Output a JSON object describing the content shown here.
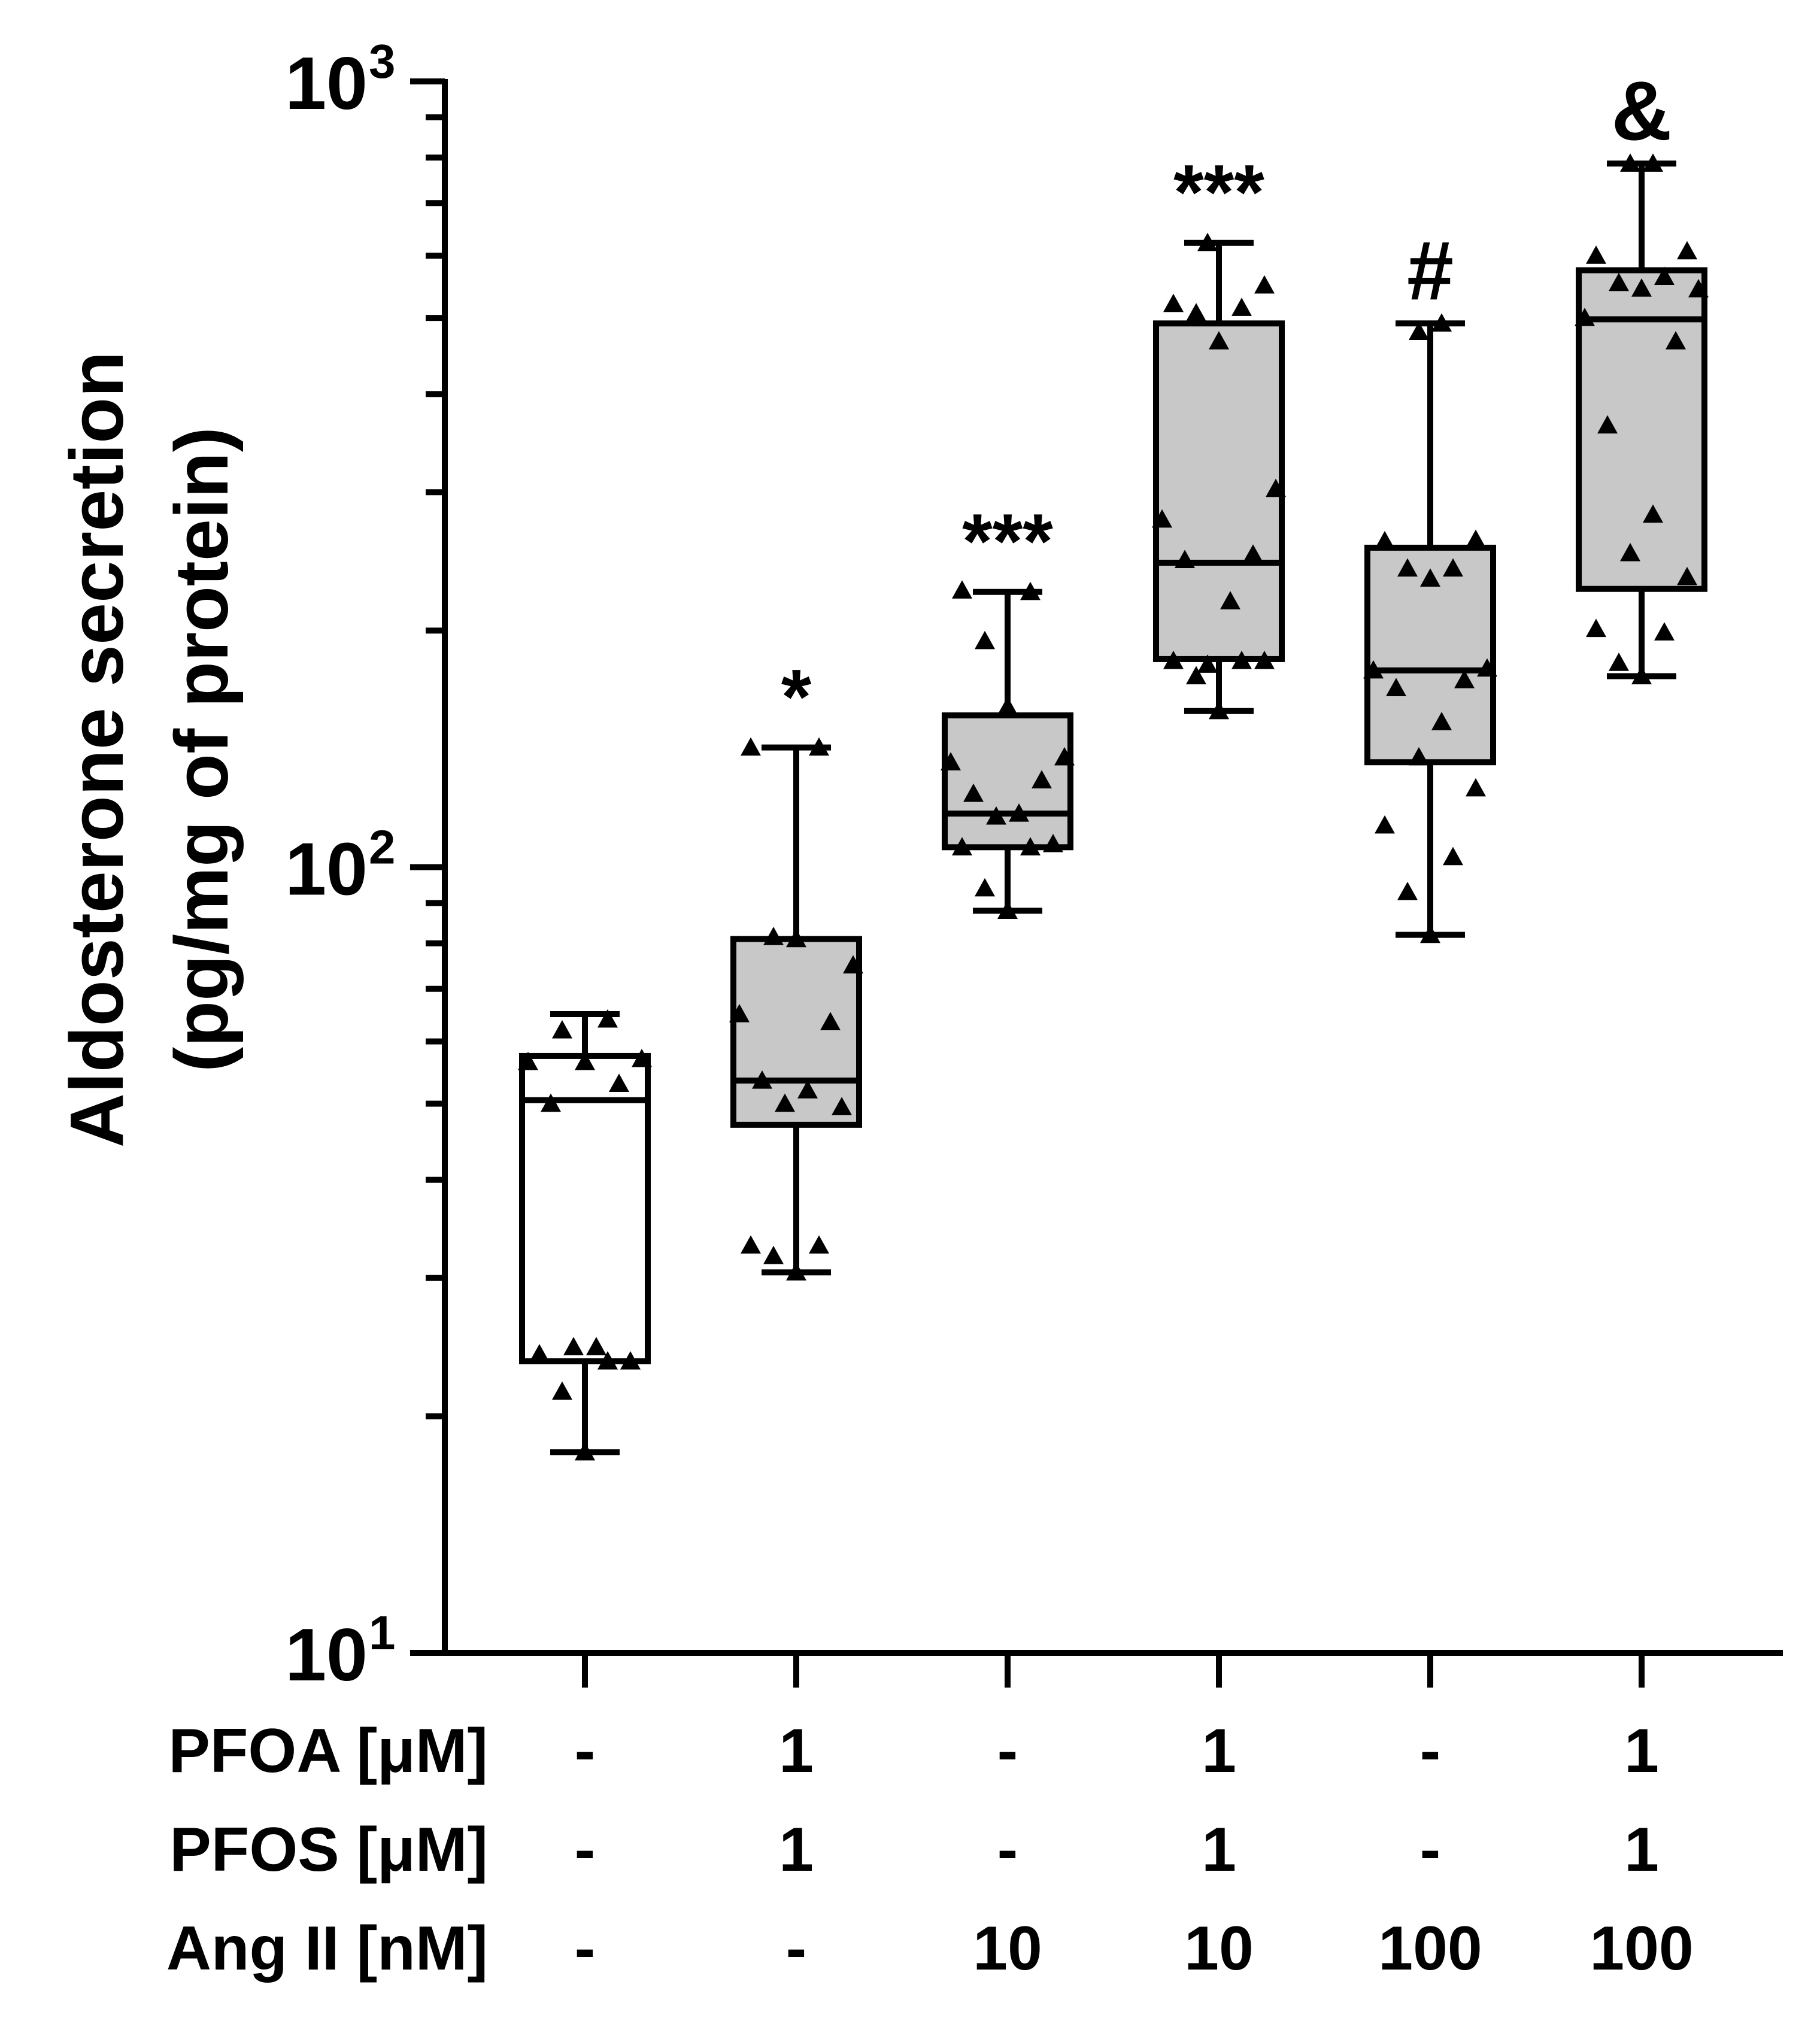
{
  "chart_data": {
    "type": "box",
    "ylabel_line1": "Aldosterone secretion",
    "ylabel_line2": "(pg/mg of protein)",
    "y_scale": "log",
    "ylim": [
      10,
      1000
    ],
    "y_ticks": [
      {
        "value": 10,
        "base": "10",
        "exp": "1"
      },
      {
        "value": 100,
        "base": "10",
        "exp": "2"
      },
      {
        "value": 1000,
        "base": "10",
        "exp": "3"
      }
    ],
    "row_labels": [
      "PFOA [μM]",
      "PFOS [μM]",
      "Ang II [nM]"
    ],
    "groups": [
      {
        "pfoa": "-",
        "pfos": "-",
        "angii": "-",
        "whisker_low": 18,
        "q1": 23.5,
        "median": 50.5,
        "q3": 57.5,
        "whisker_high": 65,
        "fill": "#ffffff",
        "annotation": "",
        "points": [
          18,
          21.5,
          23.5,
          24,
          23.5,
          24.5,
          24.5,
          50,
          53,
          56.5,
          57,
          56.5,
          62,
          64
        ]
      },
      {
        "pfoa": "1",
        "pfos": "1",
        "angii": "-",
        "whisker_low": 30.5,
        "q1": 47,
        "median": 53.5,
        "q3": 81,
        "whisker_high": 142,
        "fill": "#c8c8c8",
        "annotation": "*",
        "points": [
          30.5,
          32,
          33,
          33,
          49.5,
          50,
          52,
          53.5,
          63.5,
          65,
          75,
          81,
          81.5,
          142,
          142
        ]
      },
      {
        "pfoa": "-",
        "pfos": "-",
        "angii": "10",
        "whisker_low": 88,
        "q1": 106,
        "median": 117,
        "q3": 156,
        "whisker_high": 224,
        "fill": "#c8c8c8",
        "annotation": "***",
        "points": [
          88,
          94,
          106,
          106,
          107,
          116,
          117,
          124,
          129,
          136,
          138,
          160,
          194,
          224,
          225
        ]
      },
      {
        "pfoa": "1",
        "pfos": "1",
        "angii": "10",
        "whisker_low": 158,
        "q1": 184,
        "median": 244,
        "q3": 492,
        "whisker_high": 623,
        "fill": "#c8c8c8",
        "annotation": "***",
        "points": [
          158,
          175,
          183,
          183,
          183,
          181,
          218,
          246,
          250,
          277,
          303,
          467,
          507,
          515,
          521,
          550,
          623
        ]
      },
      {
        "pfoa": "-",
        "pfos": "-",
        "angii": "100",
        "whisker_low": 82,
        "q1": 136,
        "median": 178,
        "q3": 255,
        "whisker_high": 492,
        "fill": "#c8c8c8",
        "annotation": "#",
        "points": [
          82,
          93,
          103,
          113,
          126,
          138,
          153,
          169,
          173,
          178,
          179,
          233,
          240,
          240,
          260,
          261,
          480,
          492
        ]
      },
      {
        "pfoa": "1",
        "pfos": "1",
        "angii": "100",
        "whisker_low": 175,
        "q1": 226,
        "median": 498,
        "q3": 575,
        "whisker_high": 786,
        "fill": "#c8c8c8",
        "annotation": "&",
        "points": [
          175,
          182,
          199,
          201,
          234,
          251,
          281,
          365,
          467,
          500,
          544,
          545,
          554,
          564,
          600,
          608,
          786,
          786
        ]
      }
    ]
  }
}
